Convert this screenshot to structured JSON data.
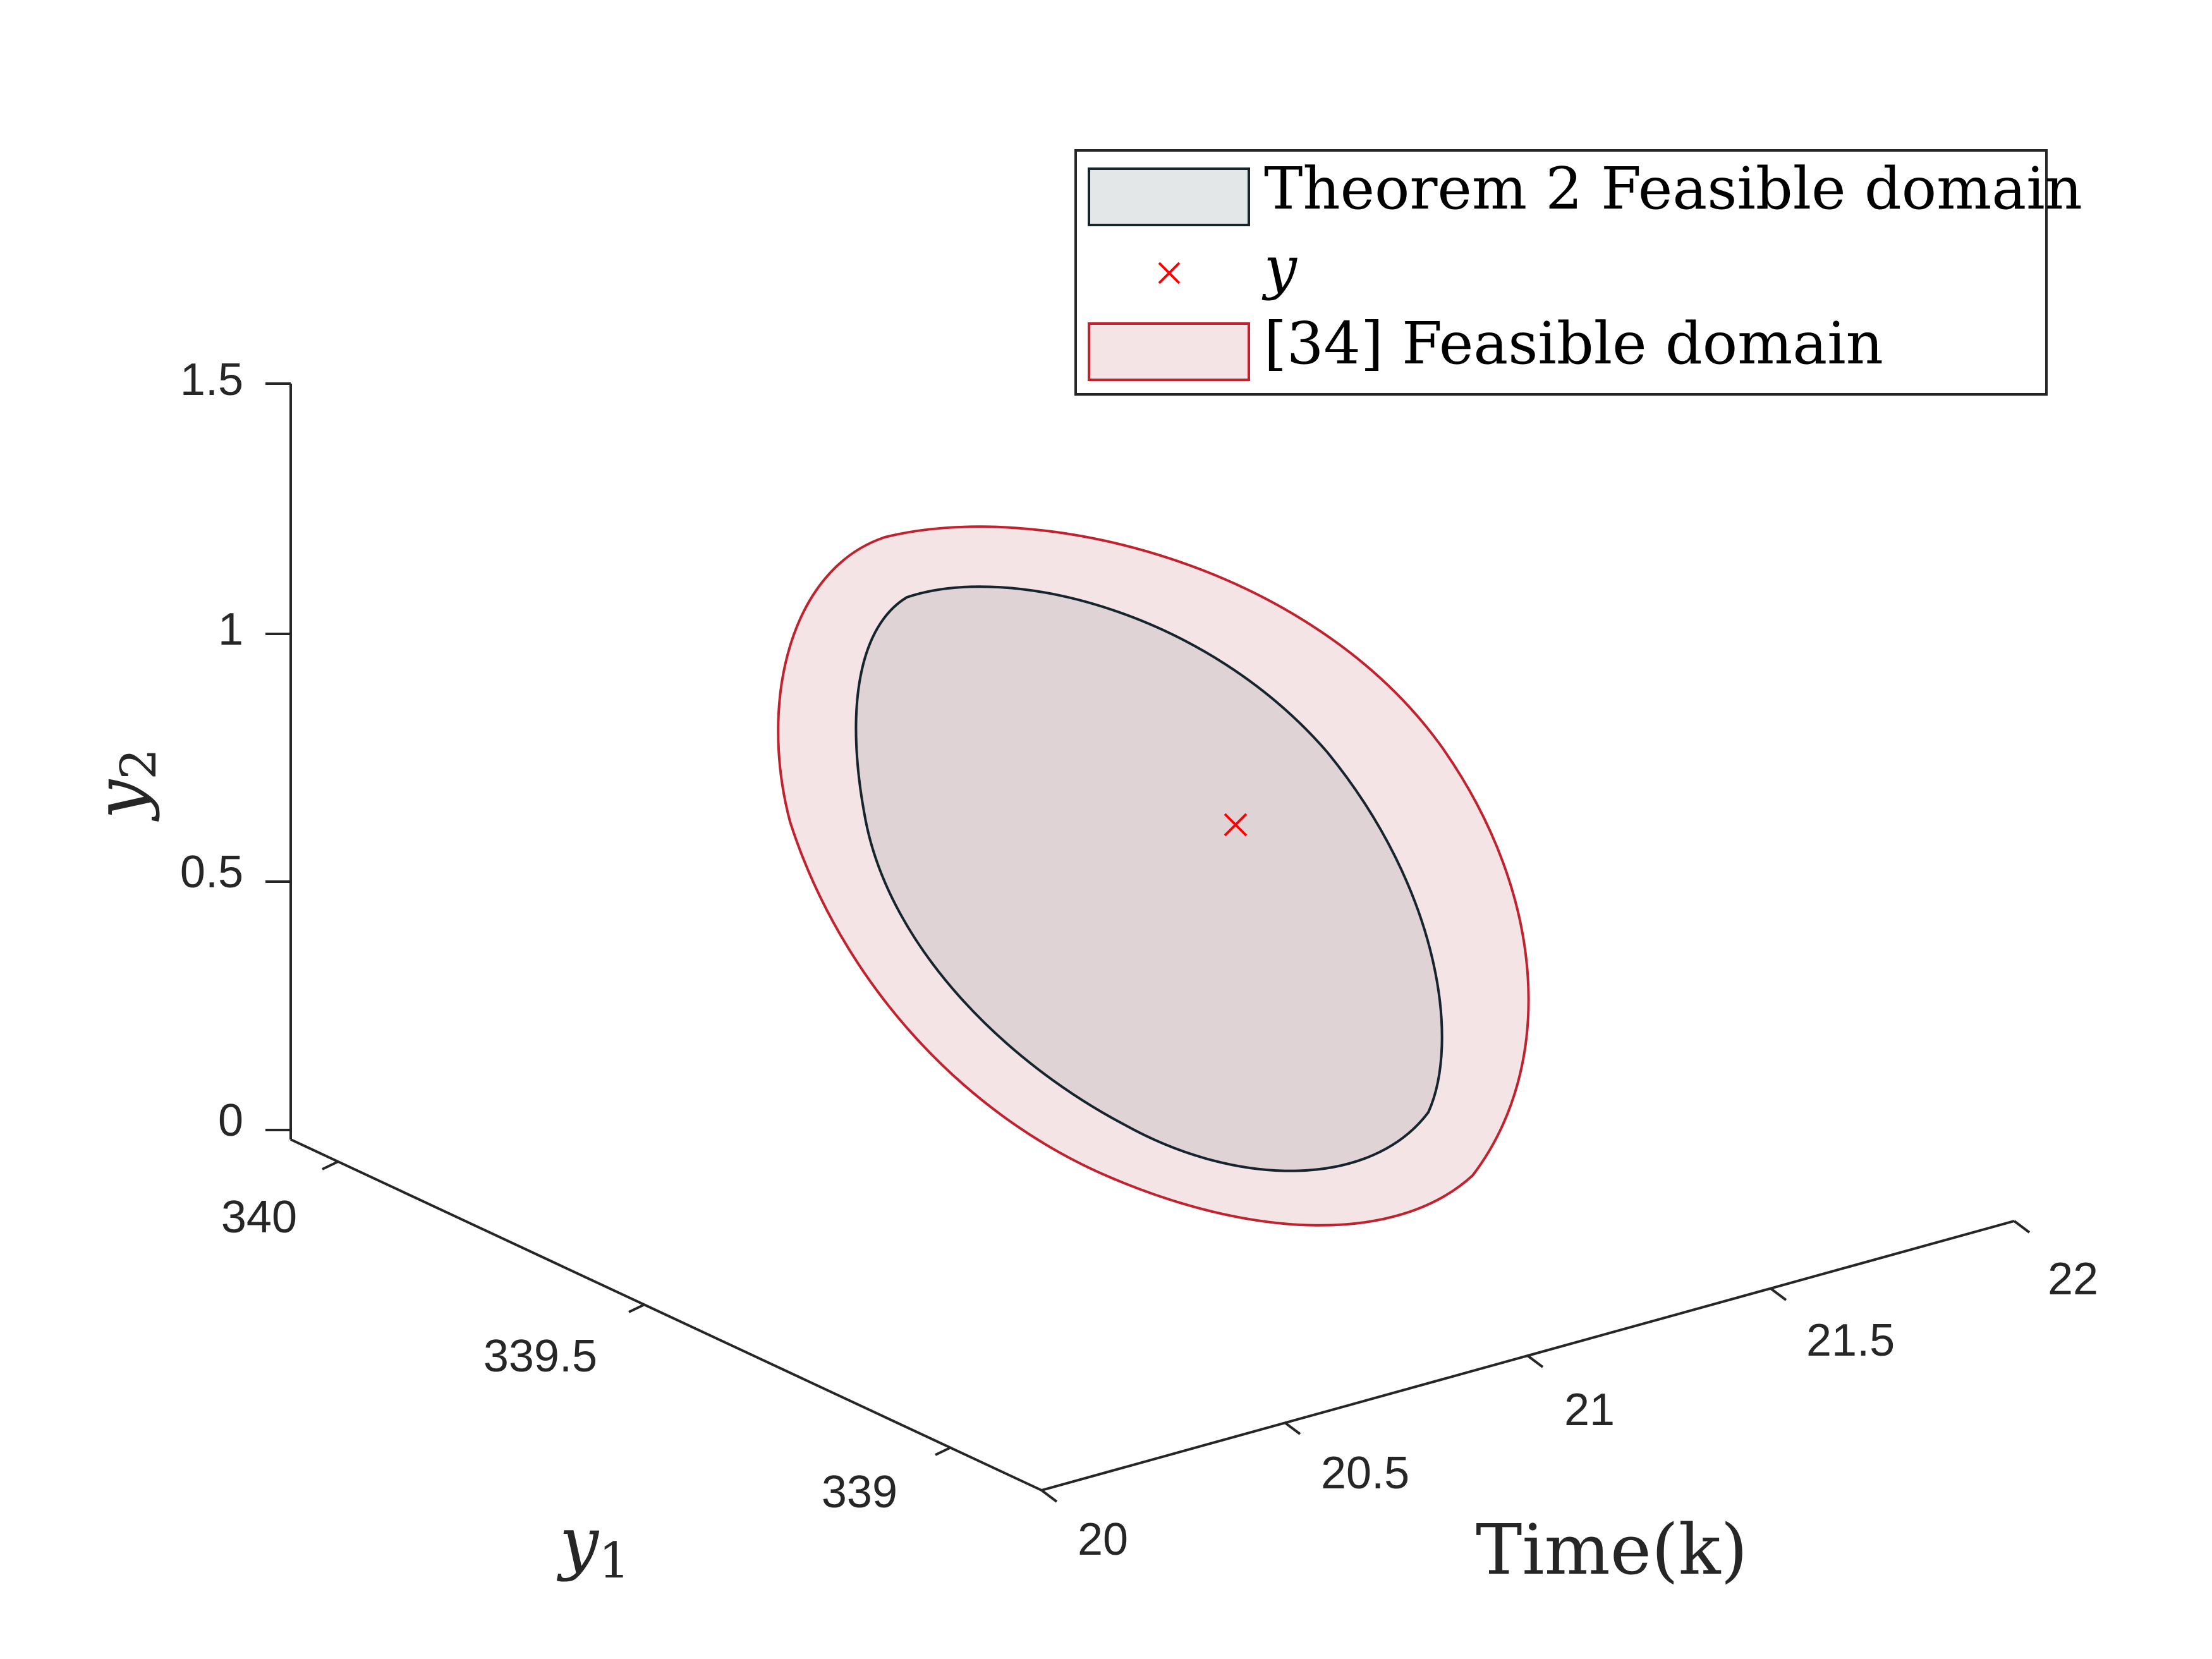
{
  "chart_data": {
    "type": "3d-region",
    "axes": {
      "time": {
        "label": "Time(k)",
        "ticks": [
          "20",
          "20.5",
          "21",
          "21.5",
          "22"
        ],
        "range": [
          20,
          22
        ]
      },
      "y1": {
        "label_main": "y",
        "label_sub": "1",
        "ticks": [
          "339",
          "339.5",
          "340"
        ],
        "range": [
          339,
          340
        ]
      },
      "y2": {
        "label_main": "y",
        "label_sub": "2",
        "ticks": [
          "0",
          "0.5",
          "1",
          "1.5"
        ],
        "range": [
          0,
          1.5
        ]
      }
    },
    "legend": {
      "position": "top-right",
      "entries": [
        {
          "label": "Theorem 2 Feasible domain",
          "kind": "patch",
          "fill": "#e4e7e8",
          "edge": "#16242e"
        },
        {
          "label": "y",
          "kind": "marker",
          "marker": "x",
          "color": "#ff0000"
        },
        {
          "label": "[34] Feasible domain",
          "kind": "patch",
          "fill": "#f5e4e6",
          "edge": "#c0222e"
        }
      ]
    },
    "series": [
      {
        "name": "Theorem 2 Feasible domain",
        "shape": "ellipse",
        "fill": "#e0d3d6",
        "edge": "#16242e"
      },
      {
        "name": "[34] Feasible domain",
        "shape": "ellipse",
        "fill": "#f5e4e6",
        "edge": "#c0222e"
      },
      {
        "name": "y",
        "shape": "marker",
        "marker": "x",
        "color": "#ff0000"
      }
    ]
  }
}
